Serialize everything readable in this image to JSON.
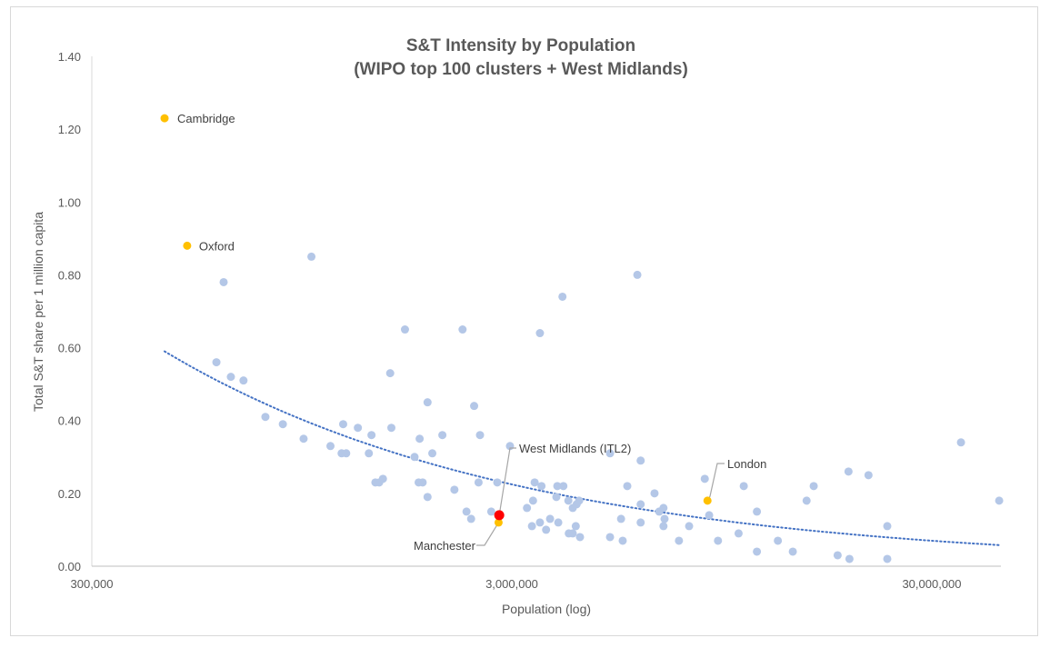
{
  "chart_data": {
    "type": "scatter",
    "title": [
      "S&T Intensity by Population",
      "(WIPO top 100 clusters + West Midlands)"
    ],
    "xlabel": "Population (log)",
    "ylabel": "Total S&T share per 1 million capita",
    "xscale": "log",
    "xlim": [
      300000,
      43500000
    ],
    "ylim": [
      0,
      1.4
    ],
    "x_ticks": [
      300000,
      3000000,
      30000000
    ],
    "x_tick_labels": [
      "300,000",
      "3,000,000",
      "30,000,000"
    ],
    "y_ticks": [
      0,
      0.2,
      0.4,
      0.6,
      0.8,
      1.0,
      1.2,
      1.4
    ],
    "y_tick_labels": [
      "0.00",
      "0.20",
      "0.40",
      "0.60",
      "0.80",
      "1.00",
      "1.20",
      "1.40"
    ],
    "grid": false,
    "colors": {
      "clusters": "#b4c7e7",
      "uk": "#ffc000",
      "west_midlands": "#ff0000",
      "trend": "#4472c4"
    },
    "highlighted": [
      {
        "name": "Cambridge",
        "x": 447000,
        "y": 1.23,
        "color": "uk"
      },
      {
        "name": "Oxford",
        "x": 506000,
        "y": 0.88,
        "color": "uk"
      },
      {
        "name": "Manchester",
        "x": 2790000,
        "y": 0.12,
        "color": "uk"
      },
      {
        "name": "West Midlands (ITL2)",
        "x": 2800000,
        "y": 0.14,
        "color": "west_midlands"
      },
      {
        "name": "London",
        "x": 8770000,
        "y": 0.18,
        "color": "uk"
      }
    ],
    "trendline": {
      "type": "power",
      "x_start": 447000,
      "x_end": 43400000,
      "y_start": 0.59,
      "y_end": 0.058
    },
    "series": [
      {
        "name": "WIPO top 100 clusters",
        "points": [
          [
            1000000,
            0.85
          ],
          [
            618000,
            0.78
          ],
          [
            5970000,
            0.8
          ],
          [
            3960000,
            0.74
          ],
          [
            3500000,
            0.64
          ],
          [
            2290000,
            0.65
          ],
          [
            1670000,
            0.65
          ],
          [
            594000,
            0.56
          ],
          [
            643000,
            0.52
          ],
          [
            689000,
            0.51
          ],
          [
            1540000,
            0.53
          ],
          [
            1890000,
            0.45
          ],
          [
            2440000,
            0.44
          ],
          [
            777000,
            0.41
          ],
          [
            855000,
            0.39
          ],
          [
            1190000,
            0.39
          ],
          [
            1290000,
            0.38
          ],
          [
            1390000,
            0.36
          ],
          [
            1550000,
            0.38
          ],
          [
            1810000,
            0.35
          ],
          [
            2050000,
            0.36
          ],
          [
            958000,
            0.35
          ],
          [
            2520000,
            0.36
          ],
          [
            1110000,
            0.33
          ],
          [
            1180000,
            0.31
          ],
          [
            1210000,
            0.31
          ],
          [
            1370000,
            0.31
          ],
          [
            1940000,
            0.31
          ],
          [
            1760000,
            0.3
          ],
          [
            2970000,
            0.33
          ],
          [
            5140000,
            0.31
          ],
          [
            6080000,
            0.29
          ],
          [
            8640000,
            0.24
          ],
          [
            15700000,
            0.22
          ],
          [
            19000000,
            0.26
          ],
          [
            21200000,
            0.25
          ],
          [
            35200000,
            0.34
          ],
          [
            43400000,
            0.18
          ],
          [
            1480000,
            0.24
          ],
          [
            1420000,
            0.23
          ],
          [
            1450000,
            0.23
          ],
          [
            1800000,
            0.23
          ],
          [
            1840000,
            0.23
          ],
          [
            2500000,
            0.23
          ],
          [
            2770000,
            0.23
          ],
          [
            3400000,
            0.23
          ],
          [
            3530000,
            0.22
          ],
          [
            3850000,
            0.22
          ],
          [
            3980000,
            0.22
          ],
          [
            2190000,
            0.21
          ],
          [
            1890000,
            0.19
          ],
          [
            5650000,
            0.22
          ],
          [
            6560000,
            0.2
          ],
          [
            10700000,
            0.22
          ],
          [
            15100000,
            0.18
          ],
          [
            3370000,
            0.18
          ],
          [
            3830000,
            0.19
          ],
          [
            4090000,
            0.18
          ],
          [
            4340000,
            0.18
          ],
          [
            4280000,
            0.17
          ],
          [
            4190000,
            0.16
          ],
          [
            3260000,
            0.16
          ],
          [
            2680000,
            0.15
          ],
          [
            2340000,
            0.15
          ],
          [
            2400000,
            0.13
          ],
          [
            3700000,
            0.13
          ],
          [
            3870000,
            0.12
          ],
          [
            3500000,
            0.12
          ],
          [
            3350000,
            0.11
          ],
          [
            3620000,
            0.1
          ],
          [
            4260000,
            0.11
          ],
          [
            4100000,
            0.09
          ],
          [
            4190000,
            0.09
          ],
          [
            4360000,
            0.08
          ],
          [
            5140000,
            0.08
          ],
          [
            5510000,
            0.07
          ],
          [
            5460000,
            0.13
          ],
          [
            6080000,
            0.17
          ],
          [
            6080000,
            0.12
          ],
          [
            6730000,
            0.15
          ],
          [
            6890000,
            0.16
          ],
          [
            6930000,
            0.13
          ],
          [
            6890000,
            0.11
          ],
          [
            7930000,
            0.11
          ],
          [
            7500000,
            0.07
          ],
          [
            8850000,
            0.14
          ],
          [
            9290000,
            0.07
          ],
          [
            10400000,
            0.09
          ],
          [
            11500000,
            0.15
          ],
          [
            11500000,
            0.04
          ],
          [
            12900000,
            0.07
          ],
          [
            14000000,
            0.04
          ],
          [
            17900000,
            0.03
          ],
          [
            19100000,
            0.02
          ],
          [
            23500000,
            0.11
          ],
          [
            23500000,
            0.02
          ]
        ]
      }
    ]
  }
}
